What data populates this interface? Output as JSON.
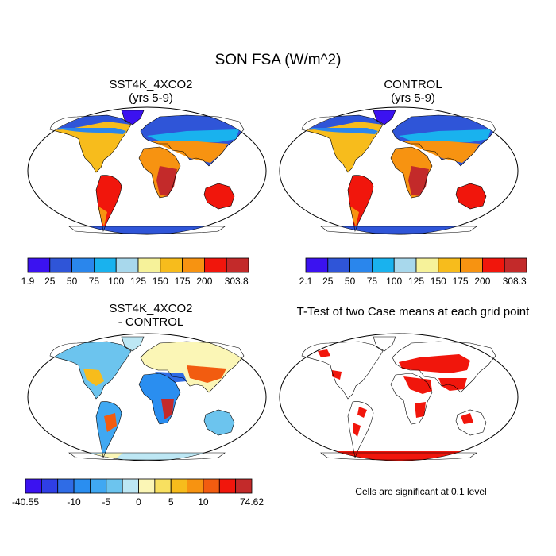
{
  "figure": {
    "title": "SON FSA (W/m^2)",
    "footnote": "Cells are significant at 0.1 level"
  },
  "chart_data": [
    {
      "type": "heatmap",
      "title": "SST4K_4XCO2",
      "subtitle": "(yrs 5-9)",
      "colorbar": {
        "min": 1.9,
        "max": 303.8,
        "levels": [
          25,
          50,
          75,
          100,
          125,
          150,
          175,
          200
        ],
        "tick_labels": [
          "1.9",
          "25",
          "50",
          "75",
          "100",
          "125",
          "150",
          "175",
          "200",
          "303.8"
        ],
        "colors": [
          "#3b12f0",
          "#2f55d8",
          "#2a86ec",
          "#19b2ee",
          "#a8d8ec",
          "#f6f29a",
          "#f7bc1c",
          "#f79311",
          "#f1160c",
          "#c32a2a"
        ]
      }
    },
    {
      "type": "heatmap",
      "title": "CONTROL",
      "subtitle": "(yrs 5-9)",
      "colorbar": {
        "min": 2.1,
        "max": 308.3,
        "levels": [
          25,
          50,
          75,
          100,
          125,
          150,
          175,
          200
        ],
        "tick_labels": [
          "2.1",
          "25",
          "50",
          "75",
          "100",
          "125",
          "150",
          "175",
          "200",
          "308.3"
        ],
        "colors": [
          "#3b12f0",
          "#2f55d8",
          "#2a86ec",
          "#19b2ee",
          "#a8d8ec",
          "#f6f29a",
          "#f7bc1c",
          "#f79311",
          "#f1160c",
          "#c32a2a"
        ]
      }
    },
    {
      "type": "heatmap",
      "title": "SST4K_4XCO2",
      "subtitle": "- CONTROL",
      "colorbar": {
        "min": -40.55,
        "max": 74.62,
        "tick_labels": [
          "-40.55",
          "-10",
          "-5",
          "0",
          "5",
          "10",
          "74.62"
        ],
        "colors": [
          "#3b12f0",
          "#2f3fe6",
          "#2f6ce6",
          "#2a8ef0",
          "#40a8f2",
          "#6cc4ee",
          "#bde7f4",
          "#fbf6b6",
          "#f8e060",
          "#f7bc1c",
          "#f79311",
          "#f25c10",
          "#f1160c",
          "#c32a2a"
        ]
      }
    },
    {
      "type": "heatmap",
      "title": "T-Test of two Case means at each grid point",
      "significant_color": "#f1160c",
      "significance_level": 0.1
    }
  ]
}
